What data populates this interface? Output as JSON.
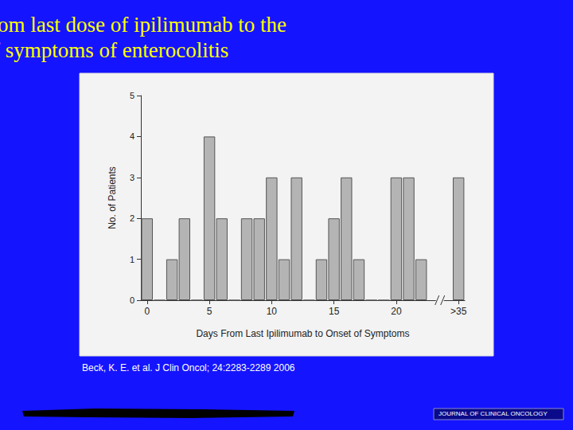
{
  "chart_data": {
    "type": "bar",
    "title": "The interval from last dose of ipilimumab to the\nonset of symptoms of enterocolitis",
    "x_label": "Days From Last Ipilimumab to Onset of Symptoms",
    "y_label": "No. of Patients",
    "categories": [
      "0",
      null,
      null,
      null,
      null,
      "5",
      null,
      null,
      null,
      null,
      "10",
      null,
      null,
      null,
      null,
      "15",
      null,
      null,
      null,
      null,
      "20",
      null,
      null,
      null,
      null,
      ">35"
    ],
    "values": [
      2,
      0,
      1,
      2,
      0,
      4,
      2,
      0,
      2,
      2,
      3,
      1,
      3,
      0,
      1,
      2,
      3,
      1,
      0,
      0,
      3,
      3,
      1,
      null,
      null,
      3
    ],
    "color": "#b4b4b4",
    "ylim": [
      0,
      5
    ],
    "yticks": [
      0,
      1,
      2,
      3,
      4,
      5
    ],
    "grid": false,
    "annotations": [
      "Beck, K. E. et al. J Clin Oncol; 24:2283-2289 2006",
      "JOURNAL OF CLINICAL ONCOLOGY"
    ]
  }
}
